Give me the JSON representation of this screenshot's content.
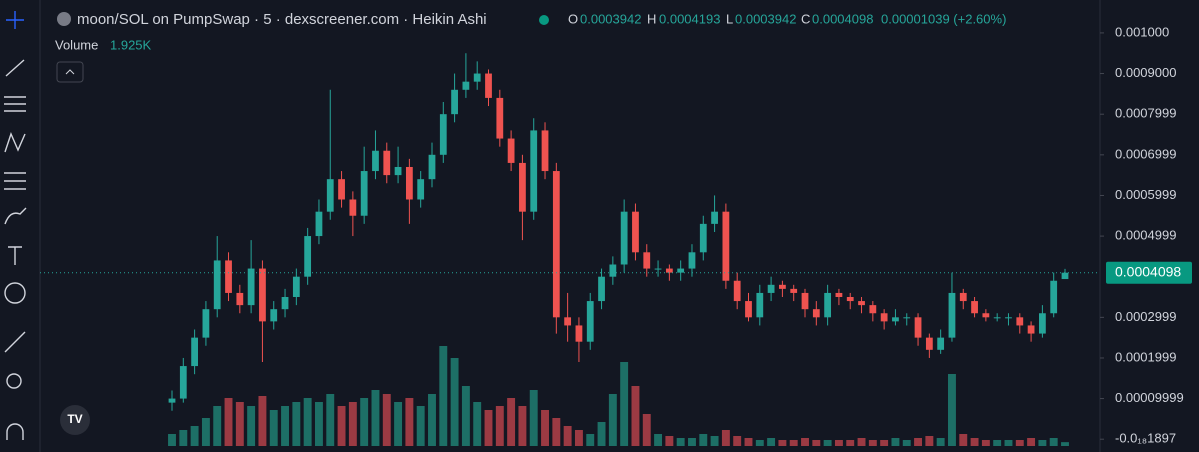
{
  "chart_data": {
    "type": "candlestick",
    "title": "moon/SOL on PumpSwap · 5 · dexscreener.com · Heikin Ashi",
    "ohlc_header": {
      "o_label": "O",
      "o": "0.0003942",
      "h_label": "H",
      "h": "0.0004193",
      "l_label": "L",
      "l": "0.0003942",
      "c_label": "C",
      "c": "0.0004098",
      "change": "0.00001039 (+2.60%)"
    },
    "volume_title": "Volume",
    "volume_last": "1.925K",
    "up_color": "#26a69a",
    "down_color": "#ef5350",
    "volume_up_color": "#1d6f66",
    "volume_down_color": "#9c3a43",
    "ylim": [
      -3.15e-05,
      0.001081
    ],
    "yticks": [
      {
        "value": 0.001,
        "label": "0.001000"
      },
      {
        "value": 0.0009,
        "label": "0.0009000"
      },
      0.0007999,
      0.0006999,
      0.0005999,
      0.0004999,
      0.0002999,
      0.0001999,
      9.999e-05,
      {
        "value": -1.897e-20,
        "label": "-0.0₁₈1897"
      }
    ],
    "last_price": 0.0004098,
    "volume_ylim": [
      0,
      55000
    ],
    "candles": [
      [
        9e-05,
        0.00012,
        7e-05,
        0.0001
      ],
      [
        0.0001,
        0.0002,
        9e-05,
        0.00018
      ],
      [
        0.00018,
        0.00027,
        0.00016,
        0.00025
      ],
      [
        0.00025,
        0.00034,
        0.00023,
        0.00032
      ],
      [
        0.00032,
        0.0005,
        0.0003,
        0.00044
      ],
      [
        0.00044,
        0.00046,
        0.00034,
        0.00036
      ],
      [
        0.00036,
        0.00038,
        0.00031,
        0.00033
      ],
      [
        0.00033,
        0.00049,
        0.00031,
        0.00042
      ],
      [
        0.00042,
        0.00044,
        0.00019,
        0.00029
      ],
      [
        0.00029,
        0.00034,
        0.00027,
        0.00032
      ],
      [
        0.00032,
        0.00037,
        0.0003,
        0.00035
      ],
      [
        0.00035,
        0.00042,
        0.00033,
        0.0004
      ],
      [
        0.0004,
        0.00052,
        0.00038,
        0.0005
      ],
      [
        0.0005,
        0.00059,
        0.00048,
        0.00056
      ],
      [
        0.00056,
        0.00086,
        0.00054,
        0.00064
      ],
      [
        0.00064,
        0.00066,
        0.00057,
        0.00059
      ],
      [
        0.00059,
        0.00061,
        0.0005,
        0.00055
      ],
      [
        0.00055,
        0.00072,
        0.00053,
        0.00066
      ],
      [
        0.00066,
        0.00076,
        0.00064,
        0.00071
      ],
      [
        0.00071,
        0.00073,
        0.00063,
        0.00065
      ],
      [
        0.00065,
        0.00072,
        0.00063,
        0.00067
      ],
      [
        0.00067,
        0.00069,
        0.00053,
        0.00059
      ],
      [
        0.00059,
        0.00066,
        0.00057,
        0.00064
      ],
      [
        0.00064,
        0.00073,
        0.00062,
        0.0007
      ],
      [
        0.0007,
        0.00083,
        0.00068,
        0.0008
      ],
      [
        0.0008,
        0.0009,
        0.00078,
        0.00086
      ],
      [
        0.00086,
        0.00095,
        0.00084,
        0.00088
      ],
      [
        0.00088,
        0.00093,
        0.00086,
        0.0009
      ],
      [
        0.0009,
        0.00091,
        0.00082,
        0.00084
      ],
      [
        0.00084,
        0.00086,
        0.00072,
        0.00074
      ],
      [
        0.00074,
        0.00076,
        0.00066,
        0.00068
      ],
      [
        0.00068,
        0.0007,
        0.00049,
        0.00056
      ],
      [
        0.00056,
        0.00079,
        0.00054,
        0.00076
      ],
      [
        0.00076,
        0.00078,
        0.00064,
        0.00066
      ],
      [
        0.00066,
        0.00068,
        0.00026,
        0.0003
      ],
      [
        0.0003,
        0.00036,
        0.00024,
        0.00028
      ],
      [
        0.00028,
        0.0003,
        0.00019,
        0.00024
      ],
      [
        0.00024,
        0.00036,
        0.00022,
        0.00034
      ],
      [
        0.00034,
        0.00042,
        0.00032,
        0.0004
      ],
      [
        0.0004,
        0.00045,
        0.00038,
        0.00043
      ],
      [
        0.00043,
        0.00059,
        0.00041,
        0.00056
      ],
      [
        0.00056,
        0.00058,
        0.00044,
        0.00046
      ],
      [
        0.00046,
        0.00048,
        0.0004,
        0.00042
      ],
      [
        0.00042,
        0.00044,
        0.0004,
        0.00042
      ],
      [
        0.00042,
        0.00043,
        0.00039,
        0.00041
      ],
      [
        0.00041,
        0.00044,
        0.00039,
        0.00042
      ],
      [
        0.00042,
        0.00048,
        0.0004,
        0.00046
      ],
      [
        0.00046,
        0.00055,
        0.00044,
        0.00053
      ],
      [
        0.00053,
        0.0006,
        0.00051,
        0.00056
      ],
      [
        0.00056,
        0.00058,
        0.00037,
        0.00039
      ],
      [
        0.00039,
        0.00041,
        0.00032,
        0.00034
      ],
      [
        0.00034,
        0.00036,
        0.00029,
        0.0003
      ],
      [
        0.0003,
        0.00038,
        0.00028,
        0.00036
      ],
      [
        0.00036,
        0.0004,
        0.00034,
        0.00038
      ],
      [
        0.00038,
        0.00039,
        0.00035,
        0.00037
      ],
      [
        0.00037,
        0.00038,
        0.00034,
        0.00036
      ],
      [
        0.00036,
        0.00037,
        0.0003,
        0.00032
      ],
      [
        0.00032,
        0.00034,
        0.00028,
        0.0003
      ],
      [
        0.0003,
        0.00038,
        0.00028,
        0.00036
      ],
      [
        0.00036,
        0.00037,
        0.00033,
        0.00035
      ],
      [
        0.00035,
        0.00036,
        0.00032,
        0.00034
      ],
      [
        0.00034,
        0.00035,
        0.00031,
        0.00033
      ],
      [
        0.00033,
        0.00034,
        0.00029,
        0.00031
      ],
      [
        0.00031,
        0.00032,
        0.00027,
        0.00029
      ],
      [
        0.00029,
        0.00032,
        0.00028,
        0.0003
      ],
      [
        0.0003,
        0.00031,
        0.00028,
        0.0003
      ],
      [
        0.0003,
        0.00031,
        0.00023,
        0.00025
      ],
      [
        0.00025,
        0.00026,
        0.0002,
        0.00022
      ],
      [
        0.00022,
        0.00027,
        0.00021,
        0.00025
      ],
      [
        0.00025,
        0.00041,
        0.00024,
        0.00036
      ],
      [
        0.00036,
        0.00037,
        0.00032,
        0.00034
      ],
      [
        0.00034,
        0.00035,
        0.0003,
        0.00031
      ],
      [
        0.00031,
        0.00032,
        0.00029,
        0.0003
      ],
      [
        0.0003,
        0.00031,
        0.00029,
        0.0003
      ],
      [
        0.0003,
        0.00031,
        0.00028,
        0.0003
      ],
      [
        0.0003,
        0.00031,
        0.00026,
        0.00028
      ],
      [
        0.00028,
        0.00029,
        0.00024,
        0.00026
      ],
      [
        0.00026,
        0.00033,
        0.00025,
        0.00031
      ],
      [
        0.00031,
        0.00041,
        0.0003,
        0.00039
      ],
      [
        0.0003942,
        0.0004193,
        0.0003942,
        0.0004098
      ]
    ],
    "volumes": [
      6000,
      8000,
      10000,
      14000,
      20000,
      24000,
      22000,
      20000,
      25000,
      18000,
      20000,
      22000,
      24000,
      22000,
      26000,
      20000,
      22000,
      24000,
      28000,
      26000,
      22000,
      24000,
      20000,
      26000,
      50000,
      44000,
      30000,
      22000,
      18000,
      20000,
      24000,
      20000,
      28000,
      18000,
      14000,
      10000,
      8000,
      6000,
      12000,
      26000,
      42000,
      30000,
      16000,
      6000,
      5000,
      4000,
      4000,
      6000,
      5000,
      8000,
      5000,
      4000,
      3000,
      4000,
      3000,
      3000,
      4000,
      3000,
      3000,
      3000,
      3000,
      4000,
      3000,
      3000,
      4000,
      3000,
      4000,
      5000,
      4000,
      36000,
      6000,
      4000,
      3000,
      3000,
      3000,
      3000,
      4000,
      3000,
      4000,
      1925
    ]
  }
}
